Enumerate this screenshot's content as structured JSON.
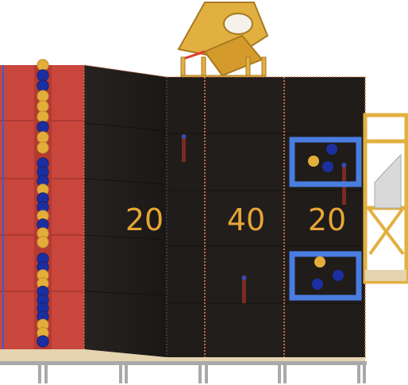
{
  "scoring_zones": [
    {
      "id": "left",
      "label": "20"
    },
    {
      "id": "center",
      "label": "40"
    },
    {
      "id": "right",
      "label": "20"
    }
  ],
  "colors": {
    "red_wall": "#c9463d",
    "dark_panel": "#1f1c1a",
    "wood": "#e2b040",
    "wood_dark": "#a77a20",
    "score_text": "#e8a535",
    "ball_gold": "#e3ad3a",
    "ball_blue": "#1c2fa0",
    "goal_frame": "#4a7de0",
    "seam_orange": "#c76a3a"
  },
  "ball_column_1": [
    "gold",
    "blue",
    "blue",
    "gold",
    "gold",
    "gold",
    "blue",
    "gold",
    "gold"
  ],
  "ball_column_2": [
    "blue",
    "blue",
    "blue",
    "gold",
    "blue",
    "blue",
    "gold",
    "blue",
    "gold",
    "gold"
  ],
  "ball_column_3": [
    "blue",
    "blue",
    "gold",
    "gold",
    "blue",
    "blue",
    "blue",
    "blue",
    "gold",
    "gold",
    "blue"
  ]
}
